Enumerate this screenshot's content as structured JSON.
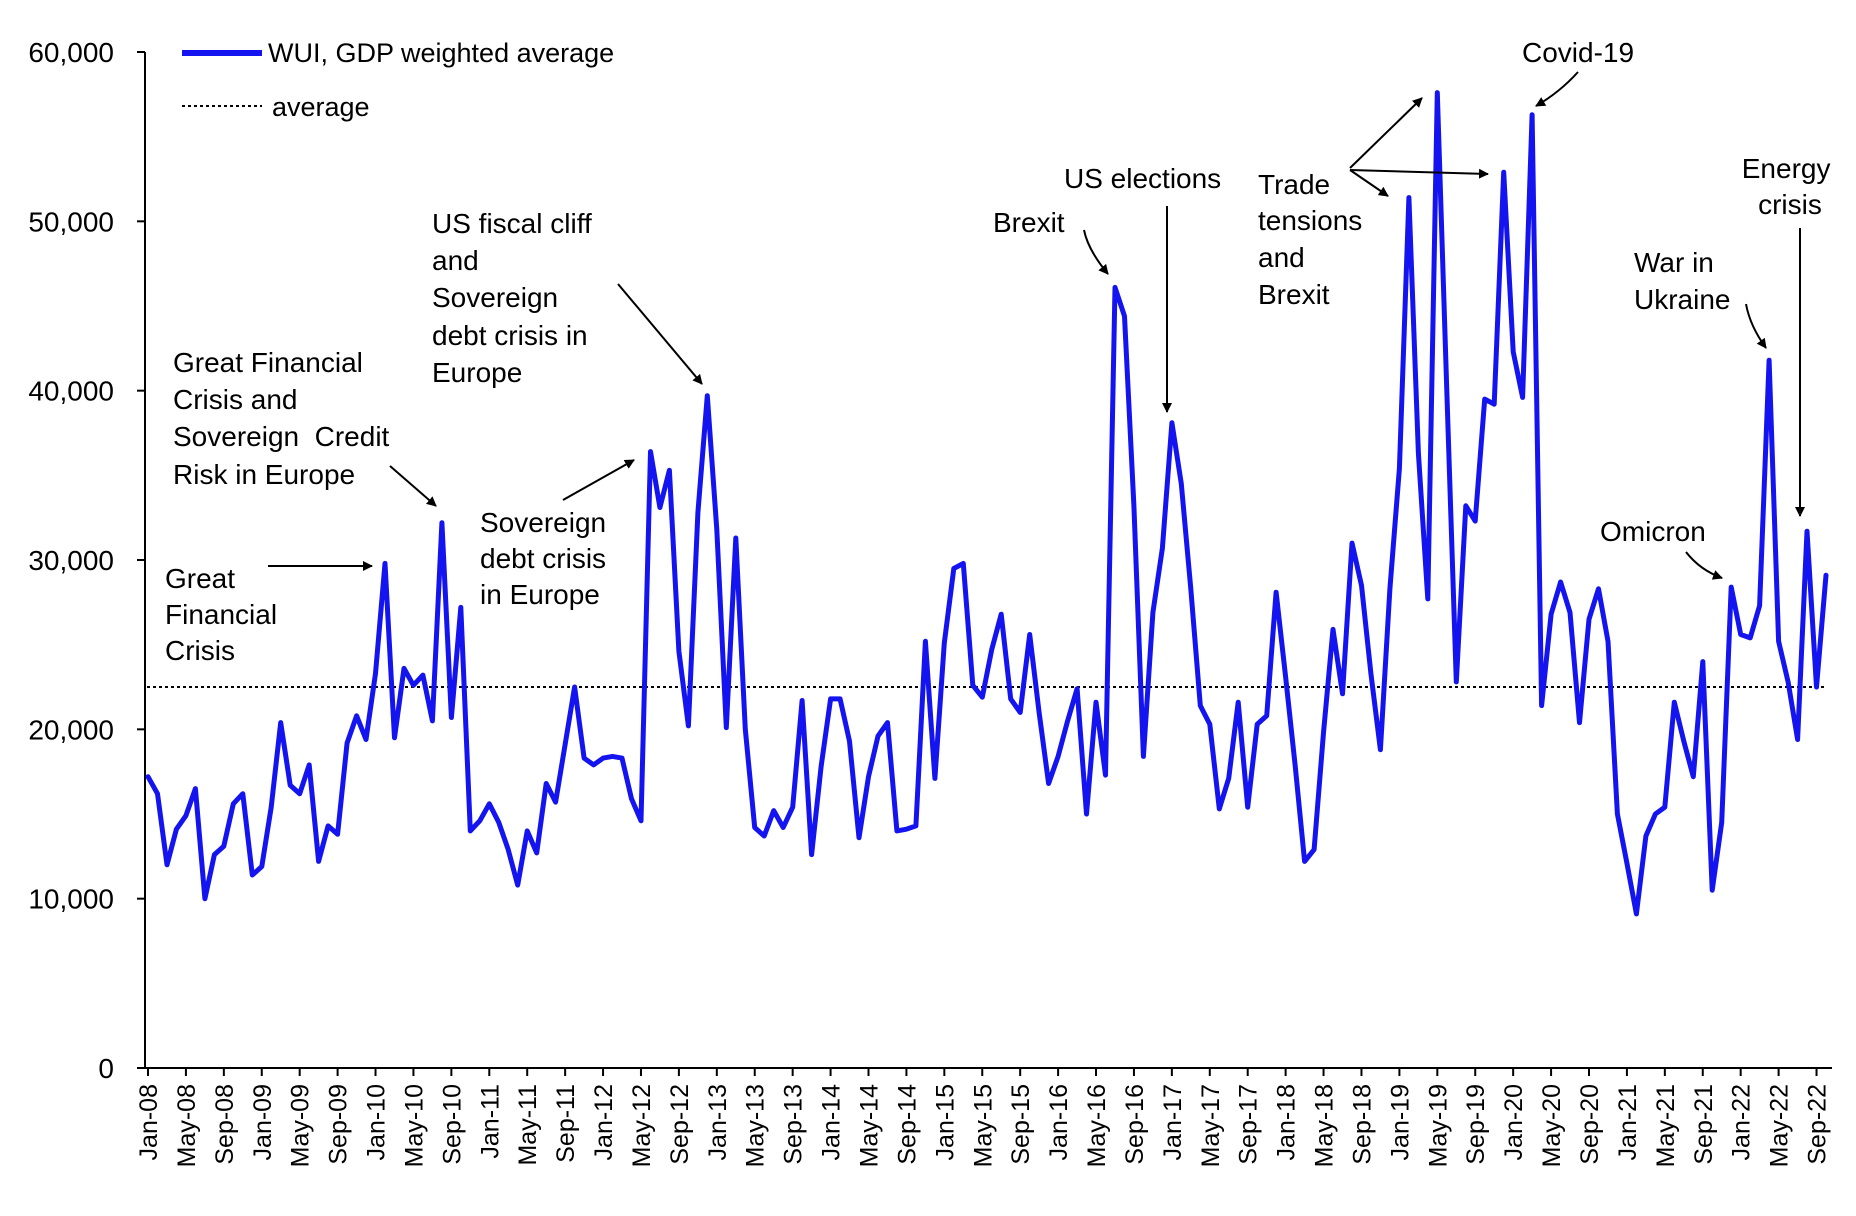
{
  "chart_data": {
    "type": "line",
    "title": "",
    "xlabel": "",
    "ylabel": "",
    "ylim": [
      0,
      60000
    ],
    "yticks": [
      0,
      10000,
      20000,
      30000,
      40000,
      50000,
      60000
    ],
    "ytick_labels": [
      "0",
      "10,000",
      "20,000",
      "30,000",
      "40,000",
      "50,000",
      "60,000"
    ],
    "x_tick_labels": [
      "Jan-08",
      "May-08",
      "Sep-08",
      "Jan-09",
      "May-09",
      "Sep-09",
      "Jan-10",
      "May-10",
      "Sep-10",
      "Jan-11",
      "May-11",
      "Sep-11",
      "Jan-12",
      "May-12",
      "Sep-12",
      "Jan-13",
      "May-13",
      "Sep-13",
      "Jan-14",
      "May-14",
      "Sep-14",
      "Jan-15",
      "May-15",
      "Sep-15",
      "Jan-16",
      "May-16",
      "Sep-16",
      "Jan-17",
      "May-17",
      "Sep-17",
      "Jan-18",
      "May-18",
      "Sep-18",
      "Jan-19",
      "May-19",
      "Sep-19",
      "Jan-20",
      "May-20",
      "Sep-20",
      "Jan-21",
      "May-21",
      "Sep-21",
      "Jan-22",
      "May-22",
      "Sep-22"
    ],
    "start_month": "Jan-08",
    "legend": {
      "position": "top-left",
      "entries": [
        {
          "label": "WUI, GDP weighted average",
          "style": "solid",
          "color": "#1414f0"
        },
        {
          "label": "average",
          "style": "dotted",
          "color": "#000000"
        }
      ]
    },
    "average": 22500,
    "series": [
      {
        "name": "WUI, GDP weighted average",
        "color": "#1414f0",
        "values": [
          17200,
          16200,
          12000,
          14100,
          14900,
          16500,
          10000,
          12600,
          13100,
          15600,
          16200,
          11400,
          11900,
          15400,
          20400,
          16700,
          16200,
          17900,
          12200,
          14300,
          13800,
          19200,
          20800,
          19400,
          23300,
          29800,
          19500,
          23600,
          22600,
          23200,
          20500,
          32200,
          20700,
          27200,
          14000,
          14600,
          15600,
          14500,
          12900,
          10800,
          14000,
          12700,
          16800,
          15700,
          19100,
          22500,
          18300,
          17900,
          18300,
          18400,
          18300,
          15900,
          14600,
          36400,
          33100,
          35300,
          24600,
          20200,
          32800,
          39700,
          31800,
          20100,
          31300,
          20000,
          14200,
          13700,
          15200,
          14200,
          15400,
          21700,
          12600,
          17800,
          21800,
          21800,
          19300,
          13600,
          17200,
          19600,
          20400,
          14000,
          14100,
          14300,
          25200,
          17100,
          25100,
          29500,
          29800,
          22600,
          21900,
          24700,
          26800,
          21800,
          21000,
          25600,
          21000,
          16800,
          18400,
          20500,
          22400,
          15000,
          21600,
          17300,
          46100,
          44400,
          33200,
          18400,
          26900,
          30700,
          38100,
          34500,
          28300,
          21400,
          20300,
          15300,
          17100,
          21600,
          15400,
          20300,
          20800,
          28100,
          23100,
          17900,
          12200,
          12900,
          19800,
          25900,
          22100,
          31000,
          28500,
          23300,
          18800,
          28300,
          35400,
          51400,
          36300,
          27700,
          57600,
          40000,
          22800,
          33200,
          32300,
          39500,
          39200,
          52900,
          42300,
          39600,
          56300,
          21400,
          26800,
          28700,
          26900,
          20400,
          26500,
          28300,
          25200,
          15000,
          12100,
          9100,
          13700,
          15000,
          15400,
          21600,
          19300,
          17200,
          24000,
          10500,
          14500,
          28400,
          25600,
          25400,
          27300,
          41800,
          25200,
          22800,
          19400,
          31700,
          22500,
          29100
        ]
      }
    ],
    "annotations": [
      {
        "text_lines": [
          "Great",
          "Financial",
          "Crisis"
        ],
        "target": "Feb-10"
      },
      {
        "text_lines": [
          "Great Financial",
          "Crisis and",
          "Sovereign  Credit",
          "Risk in Europe"
        ],
        "target": "Aug-10"
      },
      {
        "text_lines": [
          "Sovereign",
          "debt crisis",
          "in Europe"
        ],
        "target": "Jun-12"
      },
      {
        "text_lines": [
          "US fiscal cliff",
          "and",
          "Sovereign",
          "debt crisis in",
          "Europe"
        ],
        "target": "Dec-12"
      },
      {
        "text_lines": [
          "Brexit"
        ],
        "target": "Jul-16"
      },
      {
        "text_lines": [
          "US elections"
        ],
        "target": "Jan-17"
      },
      {
        "text_lines": [
          "Trade",
          "tensions",
          "and",
          "Brexit"
        ],
        "target": "May-19"
      },
      {
        "text_lines": [
          "Covid-19"
        ],
        "target": "Mar-20"
      },
      {
        "text_lines": [
          "War in",
          "Ukraine"
        ],
        "target": "Mar-22"
      },
      {
        "text_lines": [
          "Energy",
          "crisis"
        ],
        "target": "Aug-22"
      },
      {
        "text_lines": [
          "Omicron"
        ],
        "target": "Dec-21"
      }
    ]
  }
}
